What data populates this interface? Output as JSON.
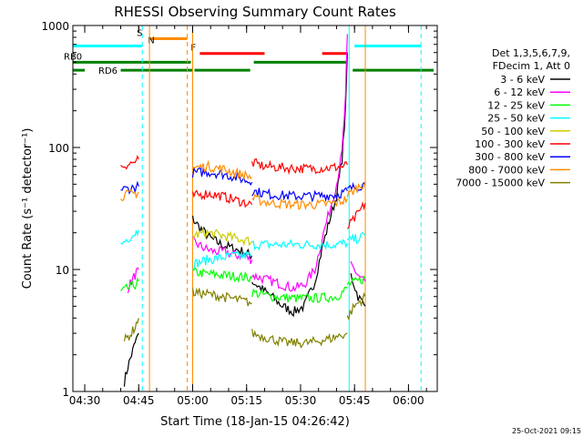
{
  "chart_data": {
    "type": "line",
    "title": "RHESSI Observing Summary Count Rates",
    "xlabel": "Start Time (18-Jan-15 04:26:42)",
    "ylabel": "Count Rate (s⁻¹ detector⁻¹)",
    "y_scale": "log",
    "ylim": [
      1,
      1000
    ],
    "xlim": [
      "04:26:42",
      "06:08:00"
    ],
    "x_ticks": [
      "04:30",
      "04:45",
      "05:00",
      "05:15",
      "05:30",
      "05:45",
      "06:00"
    ],
    "y_ticks": [
      "1",
      "10",
      "100",
      "1000"
    ],
    "timestamp": "25-Oct-2021 09:15",
    "legend": {
      "position": "right",
      "header": [
        "Det 1,3,5,6,7,9,",
        "FDecim 1, Att 0"
      ]
    },
    "series": [
      {
        "name": "3 - 6 keV",
        "color": "#000000",
        "segments": [
          {
            "x": [
              "04:41:00",
              "04:42:00",
              "04:43:00",
              "04:44:00",
              "04:45:00"
            ],
            "y": [
              1.2,
              1.6,
              2.0,
              2.5,
              3.0
            ]
          },
          {
            "x": [
              "05:00:00",
              "05:02:00",
              "05:05:00",
              "05:08:00",
              "05:11:00",
              "05:14:00",
              "05:16:30"
            ],
            "y": [
              26,
              22,
              18,
              16,
              15,
              14,
              13
            ]
          },
          {
            "x": [
              "05:16:30",
              "05:19:00",
              "05:22:00",
              "05:25:00",
              "05:28:00",
              "05:31:00",
              "05:34:00",
              "05:36:00",
              "05:38:00",
              "05:40:00",
              "05:41:30",
              "05:42:30",
              "05:43:00"
            ],
            "y": [
              8,
              7,
              6,
              5,
              4.5,
              5,
              8,
              15,
              25,
              40,
              80,
              200,
              600
            ]
          },
          {
            "x": [
              "05:44:00",
              "05:46:00",
              "05:48:00"
            ],
            "y": [
              9,
              6,
              5
            ]
          }
        ]
      },
      {
        "name": "6 - 12 keV",
        "color": "#ff00ff",
        "segments": [
          {
            "x": [
              "04:42:00",
              "04:43:00",
              "04:44:00",
              "04:45:00"
            ],
            "y": [
              7,
              8,
              9,
              10
            ]
          },
          {
            "x": [
              "05:00:00",
              "05:03:00",
              "05:06:00",
              "05:09:00",
              "05:12:00",
              "05:14:00",
              "05:16:30"
            ],
            "y": [
              17,
              15,
              14,
              14,
              13,
              13,
              12
            ]
          },
          {
            "x": [
              "05:16:30",
              "05:19:00",
              "05:22:00",
              "05:25:00",
              "05:28:00",
              "05:31:00",
              "05:34:00",
              "05:36:00",
              "05:38:00",
              "05:40:00",
              "05:41:30",
              "05:42:30",
              "05:43:00"
            ],
            "y": [
              9,
              8.5,
              8,
              7.5,
              7,
              7.5,
              10,
              18,
              30,
              50,
              90,
              250,
              850
            ]
          },
          {
            "x": [
              "05:44:00",
              "05:46:00",
              "05:48:00"
            ],
            "y": [
              11,
              9,
              8
            ]
          }
        ]
      },
      {
        "name": "12 - 25 keV",
        "color": "#00ff00",
        "segments": [
          {
            "x": [
              "04:40:00",
              "04:42:00",
              "04:44:00",
              "04:45:00"
            ],
            "y": [
              6.5,
              7,
              7.5,
              8
            ]
          },
          {
            "x": [
              "05:00:00",
              "05:04:00",
              "05:08:00",
              "05:12:00",
              "05:16:30"
            ],
            "y": [
              9.5,
              9.2,
              9,
              8.8,
              8.5
            ]
          },
          {
            "x": [
              "05:16:30",
              "05:22:00",
              "05:28:00",
              "05:34:00",
              "05:40:00",
              "05:43:00"
            ],
            "y": [
              6.5,
              6,
              5.8,
              5.8,
              6,
              7
            ]
          },
          {
            "x": [
              "05:43:00",
              "05:46:00",
              "05:48:00"
            ],
            "y": [
              7.5,
              8,
              8.5
            ]
          }
        ]
      },
      {
        "name": "25 - 50 keV",
        "color": "#00ffff",
        "segments": [
          {
            "x": [
              "04:40:00",
              "04:42:00",
              "04:44:00",
              "04:45:00"
            ],
            "y": [
              16,
              18,
              20,
              21
            ]
          },
          {
            "x": [
              "05:00:00",
              "05:04:00",
              "05:08:00",
              "05:12:00",
              "05:16:30"
            ],
            "y": [
              11,
              12,
              12.5,
              13,
              13
            ]
          },
          {
            "x": [
              "05:16:30",
              "05:22:00",
              "05:28:00",
              "05:34:00",
              "05:40:00",
              "05:43:00"
            ],
            "y": [
              16,
              16,
              16,
              16,
              16,
              16.5
            ]
          },
          {
            "x": [
              "05:43:00",
              "05:46:00",
              "05:48:00"
            ],
            "y": [
              17,
              18,
              19
            ]
          }
        ]
      },
      {
        "name": "50 - 100 keV",
        "color": "#cccc00",
        "segments": [
          {
            "x": [
              "05:00:00",
              "05:04:00",
              "05:08:00",
              "05:12:00",
              "05:16:30"
            ],
            "y": [
              19,
              20,
              19,
              18,
              17
            ]
          }
        ]
      },
      {
        "name": "100 - 300 keV",
        "color": "#ff0000",
        "segments": [
          {
            "x": [
              "04:40:00",
              "04:42:00",
              "04:44:00",
              "04:45:00"
            ],
            "y": [
              70,
              73,
              76,
              80
            ]
          },
          {
            "x": [
              "05:00:00",
              "05:04:00",
              "05:08:00",
              "05:12:00",
              "05:16:30"
            ],
            "y": [
              40,
              42,
              40,
              37,
              34
            ]
          },
          {
            "x": [
              "05:16:30",
              "05:20:00",
              "05:26:00",
              "05:32:00",
              "05:38:00",
              "05:42:00",
              "05:43:00"
            ],
            "y": [
              75,
              70,
              68,
              67,
              68,
              70,
              72
            ]
          },
          {
            "x": [
              "05:43:00",
              "05:45:00",
              "05:48:00"
            ],
            "y": [
              22,
              26,
              35
            ]
          }
        ]
      },
      {
        "name": "300 - 800 keV",
        "color": "#0000ff",
        "segments": [
          {
            "x": [
              "04:40:00",
              "04:42:00",
              "04:44:00",
              "04:45:00"
            ],
            "y": [
              45,
              46,
              47,
              48
            ]
          },
          {
            "x": [
              "05:00:00",
              "05:04:00",
              "05:08:00",
              "05:12:00",
              "05:16:30"
            ],
            "y": [
              62,
              63,
              61,
              57,
              52
            ]
          },
          {
            "x": [
              "05:16:30",
              "05:22:00",
              "05:28:00",
              "05:34:00",
              "05:40:00",
              "05:43:00"
            ],
            "y": [
              44,
              41,
              40,
              40,
              41,
              44
            ]
          },
          {
            "x": [
              "05:43:00",
              "05:45:00",
              "05:48:00"
            ],
            "y": [
              45,
              47,
              50
            ]
          }
        ]
      },
      {
        "name": "800 - 7000 keV",
        "color": "#ff8c00",
        "segments": [
          {
            "x": [
              "04:40:00",
              "04:42:00",
              "04:44:00",
              "04:45:00"
            ],
            "y": [
              40,
              41,
              42,
              43
            ]
          },
          {
            "x": [
              "05:00:00",
              "05:04:00",
              "05:08:00",
              "05:12:00",
              "05:16:30"
            ],
            "y": [
              68,
              70,
              67,
              62,
              57
            ]
          },
          {
            "x": [
              "05:16:30",
              "05:22:00",
              "05:28:00",
              "05:34:00",
              "05:40:00",
              "05:43:00"
            ],
            "y": [
              38,
              35,
              34,
              34,
              35,
              38
            ]
          },
          {
            "x": [
              "05:43:00",
              "05:45:00",
              "05:48:00"
            ],
            "y": [
              40,
              45,
              52
            ]
          }
        ]
      },
      {
        "name": "7000 - 15000 keV",
        "color": "#808000",
        "segments": [
          {
            "x": [
              "04:41:00",
              "04:42:00",
              "04:43:00",
              "04:44:00",
              "04:45:00"
            ],
            "y": [
              2.6,
              2.8,
              3.0,
              3.4,
              4.0
            ]
          },
          {
            "x": [
              "05:00:00",
              "05:04:00",
              "05:08:00",
              "05:12:00",
              "05:16:30"
            ],
            "y": [
              6.5,
              6.3,
              6,
              5.7,
              5.3
            ]
          },
          {
            "x": [
              "05:16:30",
              "05:20:00",
              "05:26:00",
              "05:32:00",
              "05:38:00",
              "05:43:00"
            ],
            "y": [
              3.0,
              2.8,
              2.5,
              2.5,
              2.7,
              3.0
            ]
          },
          {
            "x": [
              "05:43:00",
              "05:45:00",
              "05:48:00"
            ],
            "y": [
              4.0,
              5.0,
              6.0
            ]
          }
        ]
      }
    ],
    "flag_bars": [
      {
        "label": "S",
        "color": "#ff8c00",
        "label_color": "#ff8c00",
        "ranges": [
          [
            "04:48:00",
            "04:58:30"
          ]
        ],
        "y": 780
      },
      {
        "label": "N",
        "color": "#00ffff",
        "label_color": "#00ffff",
        "ranges": [
          [
            "04:26:42",
            "04:46:00"
          ],
          [
            "05:45:00",
            "06:03:30"
          ]
        ],
        "y": 680
      },
      {
        "label": "F",
        "color": "#ff0000",
        "label_color": "#ff0000",
        "ranges": [
          [
            "05:02:00",
            "05:20:00"
          ],
          [
            "05:36:00",
            "05:43:00"
          ]
        ],
        "y": 590
      },
      {
        "label": "RB0",
        "color": "#008000",
        "label_color": "#008000",
        "ranges": [
          [
            "04:26:42",
            "04:59:30"
          ],
          [
            "05:17:00",
            "05:43:00"
          ]
        ],
        "y": 500
      },
      {
        "label": "RD6",
        "color": "#008000",
        "label_color": "#008000",
        "ranges": [
          [
            "04:26:42",
            "04:30:00"
          ],
          [
            "04:40:00",
            "05:00:00"
          ],
          [
            "05:00:30",
            "05:16:00"
          ],
          [
            "05:44:30",
            "06:07:00"
          ]
        ],
        "y": 430
      }
    ],
    "vertical_markers": [
      {
        "time": "04:26:42",
        "color": "#00ffff",
        "style": "solid"
      },
      {
        "time": "04:46:00",
        "color": "#00ffff",
        "style": "dashed"
      },
      {
        "time": "04:48:00",
        "color": "#ff8c00",
        "style": "solid"
      },
      {
        "time": "04:58:30",
        "color": "#ff8c00",
        "style": "dashed"
      },
      {
        "time": "05:00:00",
        "color": "#ff8c00",
        "style": "solid"
      },
      {
        "time": "05:43:30",
        "color": "#00ffff",
        "style": "solid"
      },
      {
        "time": "05:48:00",
        "color": "#ff8c00",
        "style": "solid"
      },
      {
        "time": "06:03:30",
        "color": "#00ffff",
        "style": "dashed"
      }
    ]
  }
}
